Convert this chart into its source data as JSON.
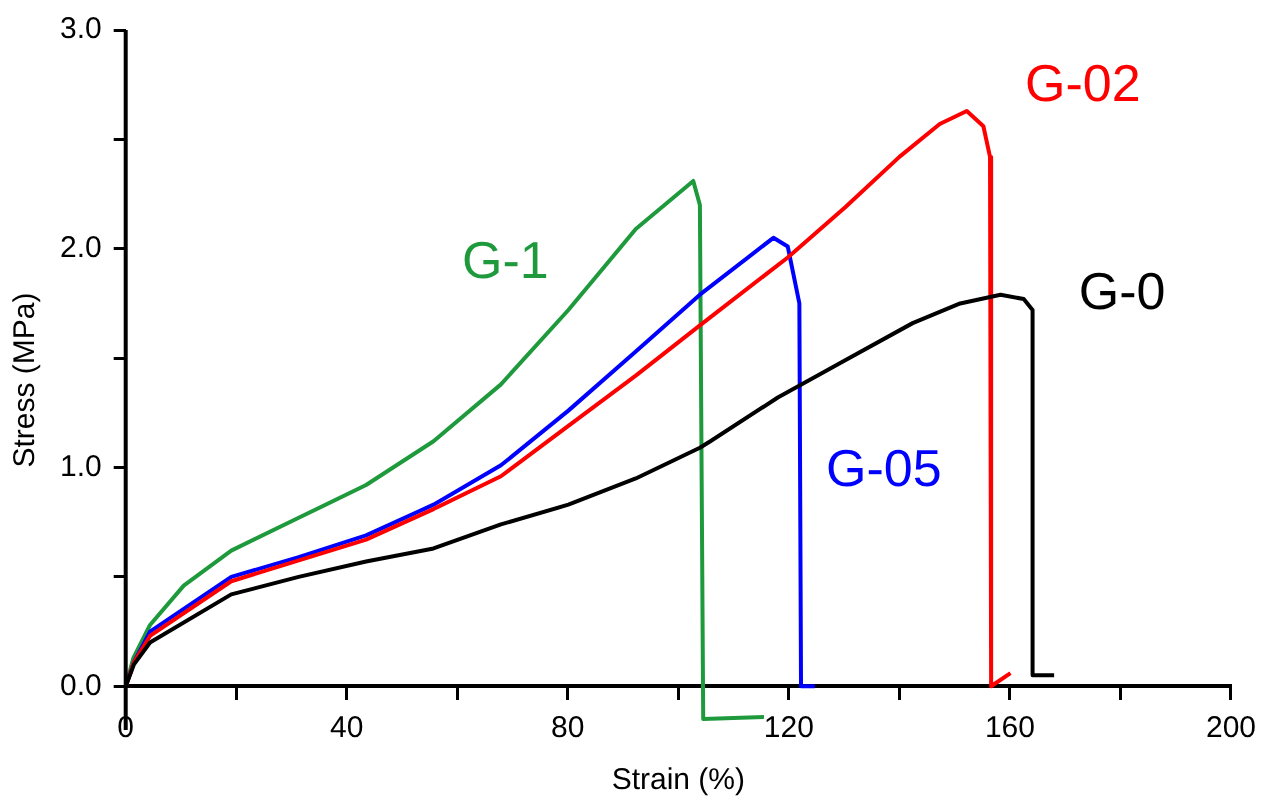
{
  "chart_data": {
    "type": "line",
    "xlabel": "Strain (%)",
    "ylabel": "Stress (MPa)",
    "xlim": [
      0,
      200
    ],
    "xticks": [
      0,
      {
        "value": 20,
        "label": null
      },
      40,
      {
        "value": 60,
        "label": null
      },
      80,
      {
        "value": 100,
        "label": null
      },
      120,
      {
        "value": 140,
        "label": null
      },
      160,
      {
        "value": 180,
        "label": null
      },
      200
    ],
    "ylim": [
      -0.2,
      3.0
    ],
    "yticks": [
      {
        "value": 0,
        "label": "0.0"
      },
      {
        "value": 0.5,
        "label": null
      },
      {
        "value": 1,
        "label": "1.0"
      },
      {
        "value": 1.5,
        "label": null
      },
      {
        "value": 2,
        "label": "2.0"
      },
      {
        "value": 2.5,
        "label": null
      },
      {
        "value": 3,
        "label": "3.0"
      }
    ],
    "grid": false,
    "legend": false,
    "marker": "none",
    "line_style": "solid",
    "series": [
      {
        "name": "G-0",
        "color": "#000000",
        "x": [
          0,
          1.5,
          4.4,
          19.1,
          31.3,
          43.5,
          55.7,
          67.9,
          80.1,
          92.3,
          103.9,
          105.8,
          118,
          130.2,
          142.4,
          151,
          158.3,
          162.5,
          164.1,
          164.1,
          168
        ],
        "values": [
          0,
          0.1,
          0.2,
          0.42,
          0.5,
          0.57,
          0.63,
          0.74,
          0.83,
          0.95,
          1.09,
          1.12,
          1.32,
          1.49,
          1.66,
          1.75,
          1.79,
          1.77,
          1.72,
          0.05,
          0.05
        ]
      },
      {
        "name": "G-02",
        "color": "#ff0000",
        "x": [
          0,
          1.5,
          4.4,
          19.1,
          43.5,
          55.7,
          67.9,
          80.1,
          92.3,
          103.9,
          119.8,
          130.2,
          140,
          147.3,
          152.2,
          155.2,
          156.4,
          156.6,
          160.1
        ],
        "values": [
          0,
          0.11,
          0.23,
          0.48,
          0.67,
          0.81,
          0.96,
          1.19,
          1.42,
          1.65,
          1.96,
          2.19,
          2.42,
          2.57,
          2.63,
          2.56,
          2.42,
          0,
          0.06
        ]
      },
      {
        "name": "G-05",
        "color": "#0000ff",
        "x": [
          0,
          1.5,
          4.4,
          19.1,
          31.3,
          43.5,
          55.7,
          67.9,
          80.1,
          92.3,
          103.9,
          117.2,
          119.8,
          121.9,
          122.2,
          124.7
        ],
        "values": [
          0,
          0.11,
          0.25,
          0.5,
          0.59,
          0.69,
          0.83,
          1.01,
          1.26,
          1.53,
          1.79,
          2.05,
          2.01,
          1.75,
          0,
          0
        ]
      },
      {
        "name": "G-1",
        "color": "#1e9a3c",
        "x": [
          0,
          1.4,
          4.4,
          10.5,
          19.1,
          31.3,
          43.5,
          55.7,
          67.9,
          80.1,
          92.3,
          102.7,
          103.9,
          104.5,
          115.5
        ],
        "values": [
          0,
          0.13,
          0.28,
          0.46,
          0.62,
          0.77,
          0.92,
          1.12,
          1.38,
          1.72,
          2.09,
          2.31,
          2.2,
          -0.15,
          -0.14
        ]
      }
    ]
  }
}
